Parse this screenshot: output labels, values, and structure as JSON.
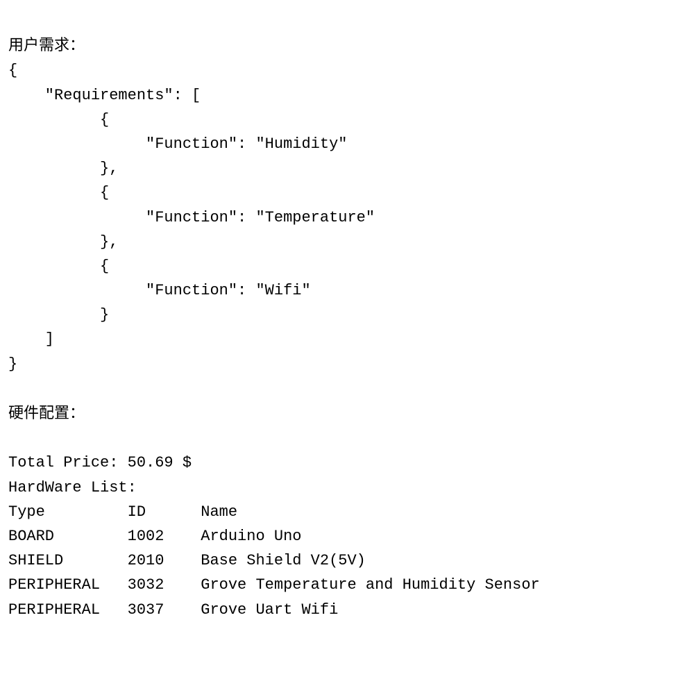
{
  "section1_header": "用户需求：",
  "code_block": {
    "line1": "{",
    "line2": "    \"Requirements\": [",
    "line3": "          {",
    "line4": "               \"Function\": \"Humidity\"",
    "line5": "          },",
    "line6": "          {",
    "line7": "               \"Function\": \"Temperature\"",
    "line8": "          },",
    "line9": "          {",
    "line10": "               \"Function\": \"Wifi\"",
    "line11": "          }",
    "line12": "    ]",
    "line13": "}"
  },
  "section2_header": "硬件配置：",
  "price_line": "Total Price: 50.69 $",
  "list_header": "HardWare List:",
  "table": {
    "header": {
      "col1": "Type",
      "col2": "ID",
      "col3": "Name"
    },
    "rows": [
      {
        "col1": "BOARD",
        "col2": "1002",
        "col3": "Arduino Uno"
      },
      {
        "col1": "SHIELD",
        "col2": "2010",
        "col3": "Base Shield V2(5V)"
      },
      {
        "col1": "PERIPHERAL",
        "col2": "3032",
        "col3": "Grove Temperature and Humidity Sensor"
      },
      {
        "col1": "PERIPHERAL",
        "col2": "3037",
        "col3": "Grove Uart Wifi"
      }
    ]
  },
  "styling": {
    "font_family_mono": "Courier New",
    "font_family_cjk": "SimSun",
    "font_size_pt": 16,
    "text_color": "#000000",
    "background_color": "#ffffff",
    "col1_width_chars": 13,
    "col2_width_chars": 8
  }
}
